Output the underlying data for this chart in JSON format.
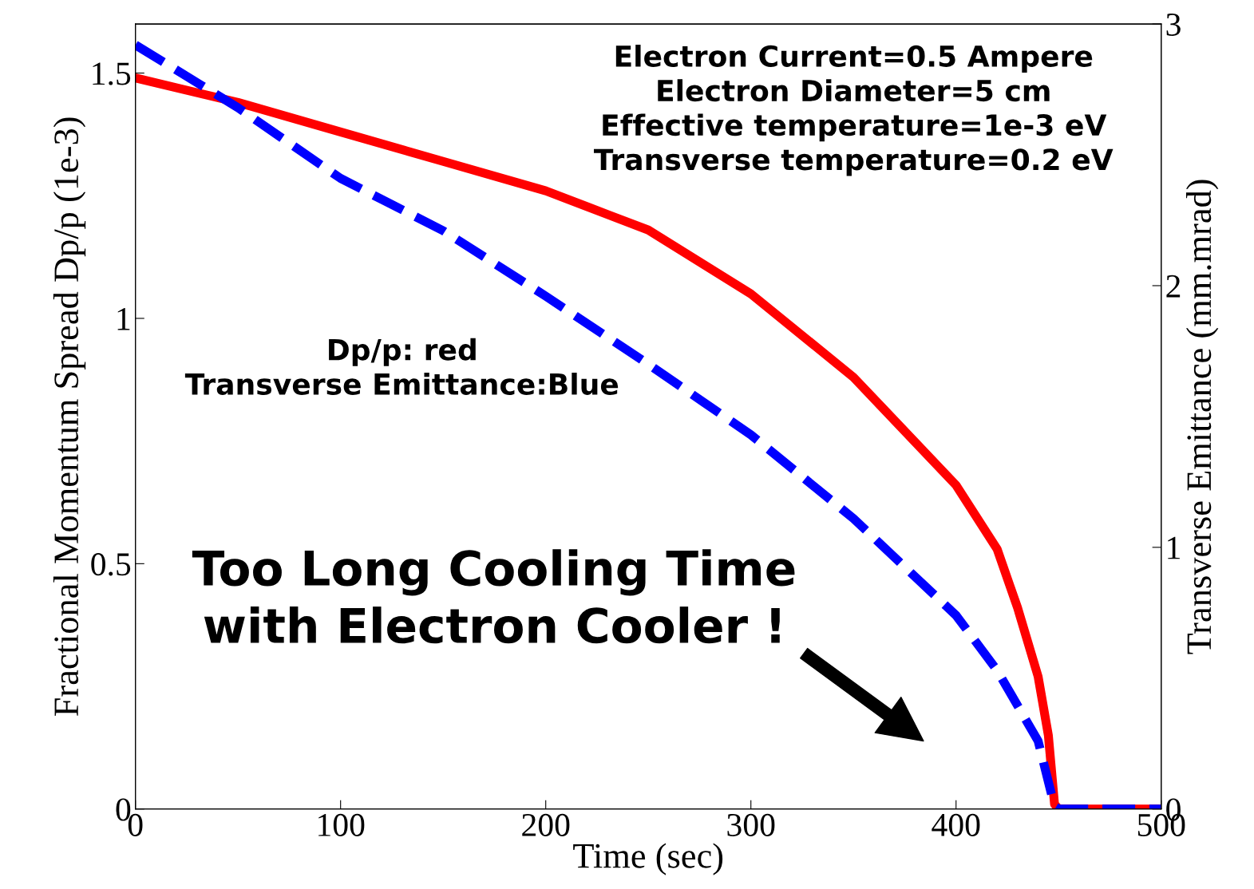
{
  "chart_data": {
    "type": "line",
    "xlabel": "Time (sec)",
    "ylabel": "Fractional Momentum Spread Dp/p (1e-3)",
    "y2label": "Transverse Emittance (mm.mrad)",
    "xlim": [
      0,
      500
    ],
    "xticks": [
      0,
      100,
      200,
      300,
      400,
      500
    ],
    "ylim": [
      0,
      1.6
    ],
    "yticks": [
      0,
      0.5,
      1,
      1.5
    ],
    "y2lim": [
      0,
      3
    ],
    "y2ticks": [
      0,
      1,
      2,
      3
    ],
    "grid": false,
    "legend": false,
    "series": [
      {
        "color": "#ff0000",
        "line_style": "solid",
        "x": [
          0,
          50,
          100,
          150,
          200,
          250,
          300,
          350,
          400,
          420,
          430,
          440,
          445,
          448,
          450,
          500
        ],
        "values": [
          1.49,
          1.44,
          1.38,
          1.32,
          1.26,
          1.18,
          1.05,
          0.88,
          0.66,
          0.53,
          0.41,
          0.27,
          0.15,
          0.01,
          0,
          0
        ]
      },
      {
        "color": "#0000ff",
        "line_style": "dashed",
        "axis": "y2",
        "x": [
          0,
          50,
          100,
          150,
          200,
          250,
          300,
          350,
          400,
          420,
          440,
          448,
          450,
          500
        ],
        "values": [
          2.92,
          2.68,
          2.41,
          2.21,
          1.96,
          1.7,
          1.43,
          1.11,
          0.74,
          0.53,
          0.26,
          0.01,
          0,
          0
        ]
      }
    ],
    "annotations": [
      "Electron Current=0.5 Ampere\nElectron Diameter=5 cm\nEffective temperature=1e-3 eV\nTransverse temperature=0.2 eV",
      "Dp/p: red\nTransverse Emittance:Blue",
      "Too Long Cooling Time\nwith Electron Cooler !"
    ]
  }
}
